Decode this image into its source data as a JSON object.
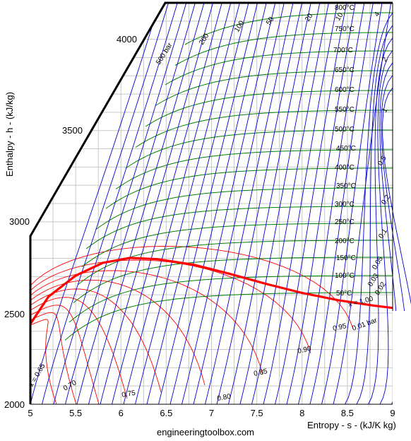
{
  "chart_data": {
    "type": "line",
    "title": "",
    "xlabel": "Entropy - s - (kJ/K kg)",
    "ylabel": "Enthalpy - h - (kJ/kg)",
    "xlim": [
      5,
      9
    ],
    "ylim": [
      2000,
      4200
    ],
    "x_ticks": [
      "5",
      "5.5",
      "6",
      "6.5",
      "7",
      "7.5",
      "8",
      "8.5",
      "9"
    ],
    "y_ticks": [
      "2000",
      "2500",
      "3000",
      "3500",
      "4000"
    ],
    "grid": true,
    "saturation_line": {
      "label": "x = 1.00",
      "color": "#ff0000",
      "points": [
        [
          5.0,
          2440
        ],
        [
          5.2,
          2590
        ],
        [
          5.5,
          2705
        ],
        [
          5.8,
          2775
        ],
        [
          6.1,
          2802
        ],
        [
          6.4,
          2795
        ],
        [
          6.8,
          2765
        ],
        [
          7.2,
          2715
        ],
        [
          7.6,
          2660
        ],
        [
          8.0,
          2610
        ],
        [
          8.4,
          2570
        ],
        [
          8.8,
          2540
        ],
        [
          9.0,
          2528
        ]
      ]
    },
    "quality_lines": {
      "labels": [
        "x = 0.65",
        "0.70",
        "0.75",
        "0.80",
        "0.85",
        "0.90",
        "0.95"
      ],
      "color": "#ff0000"
    },
    "pressure_lines": {
      "color": "#0000cc",
      "labels": [
        "500 bar",
        "200",
        "100",
        "50",
        "20",
        "10",
        "4",
        "2",
        "1",
        "0.5",
        "0.2",
        "0.1",
        "0.05",
        "0.03",
        "0.02",
        "0.01 bar"
      ]
    },
    "temperature_lines": {
      "color": "#007700",
      "labels": [
        "800°C",
        "750°C",
        "700°C",
        "650°C",
        "600°C",
        "550°C",
        "500°C",
        "450°C",
        "400°C",
        "350°C",
        "300°C",
        "250°C",
        "200°C",
        "150°C",
        "100°C",
        "50°C"
      ]
    }
  },
  "footer": "engineeringtoolbox.com"
}
